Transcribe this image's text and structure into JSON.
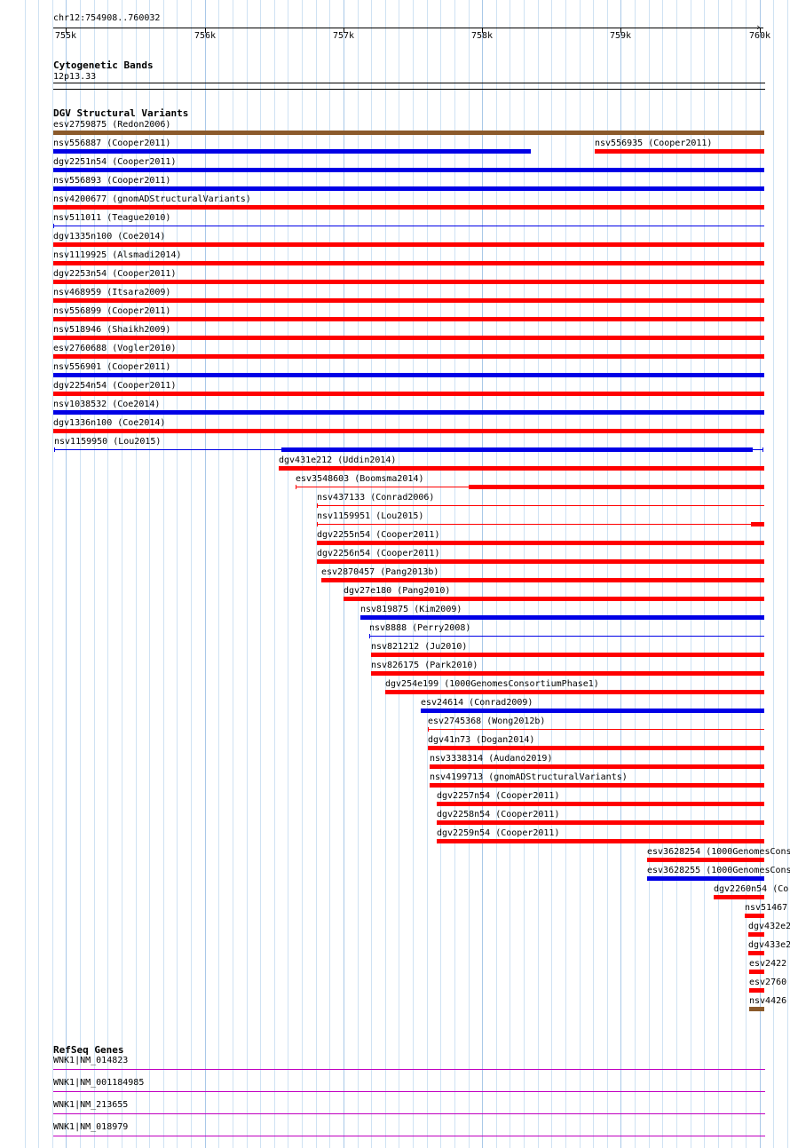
{
  "location": "chr12:754908..760032",
  "ruler": {
    "ticks": [
      {
        "label": "755k",
        "bp": 755000
      },
      {
        "label": "756k",
        "bp": 756000
      },
      {
        "label": "757k",
        "bp": 757000
      },
      {
        "label": "758k",
        "bp": 758000
      },
      {
        "label": "759k",
        "bp": 759000
      },
      {
        "label": "760k",
        "bp": 760000
      }
    ]
  },
  "cytoband": {
    "title": "Cytogenetic Bands",
    "band": "12p13.33"
  },
  "dgv": {
    "title": "DGV Structural Variants",
    "colors": {
      "brown": "#8b5a2b",
      "red": "#ff0000",
      "blue": "#0000e6"
    },
    "features": [
      {
        "label": "esv2759875 (Redon2006)",
        "start": 754908,
        "end": 760032,
        "color": "brown",
        "style": "bar",
        "row": 0
      },
      {
        "label": "nsv556887 (Cooper2011)",
        "start": 754908,
        "end": 758349,
        "color": "blue",
        "style": "bar",
        "row": 1
      },
      {
        "label": "nsv556935 (Cooper2011)",
        "start": 758813,
        "end": 760032,
        "color": "red",
        "style": "bar",
        "row": 1
      },
      {
        "label": "dgv2251n54 (Cooper2011)",
        "start": 754908,
        "end": 760032,
        "color": "blue",
        "style": "bar",
        "row": 2
      },
      {
        "label": "nsv556893 (Cooper2011)",
        "start": 754908,
        "end": 760032,
        "color": "blue",
        "style": "bar",
        "row": 3
      },
      {
        "label": "nsv4200677 (gnomADStructuralVariants)",
        "start": 754908,
        "end": 760032,
        "color": "red",
        "style": "bar",
        "row": 4
      },
      {
        "label": "nsv511011 (Teague2010)",
        "start": 754908,
        "end": 760032,
        "color": "blue",
        "style": "thin",
        "row": 5
      },
      {
        "label": "dgv1335n100 (Coe2014)",
        "start": 754908,
        "end": 760032,
        "color": "red",
        "style": "bar",
        "row": 6
      },
      {
        "label": "nsv1119925 (Alsmadi2014)",
        "start": 754908,
        "end": 760032,
        "color": "red",
        "style": "bar",
        "row": 7
      },
      {
        "label": "dgv2253n54 (Cooper2011)",
        "start": 754908,
        "end": 760032,
        "color": "red",
        "style": "bar",
        "row": 8
      },
      {
        "label": "nsv468959 (Itsara2009)",
        "start": 754908,
        "end": 760032,
        "color": "red",
        "style": "bar",
        "row": 9
      },
      {
        "label": "nsv556899 (Cooper2011)",
        "start": 754908,
        "end": 760032,
        "color": "red",
        "style": "bar",
        "row": 10
      },
      {
        "label": "nsv518946 (Shaikh2009)",
        "start": 754908,
        "end": 760032,
        "color": "red",
        "style": "bar",
        "row": 11
      },
      {
        "label": "esv2760688 (Vogler2010)",
        "start": 754908,
        "end": 760032,
        "color": "red",
        "style": "bar",
        "row": 12
      },
      {
        "label": "nsv556901 (Cooper2011)",
        "start": 754908,
        "end": 760032,
        "color": "blue",
        "style": "bar",
        "row": 13
      },
      {
        "label": "dgv2254n54 (Cooper2011)",
        "start": 754908,
        "end": 760032,
        "color": "red",
        "style": "bar",
        "row": 14
      },
      {
        "label": "nsv1038532 (Coe2014)",
        "start": 754908,
        "end": 760032,
        "color": "blue",
        "style": "bar",
        "row": 15
      },
      {
        "label": "dgv1336n100 (Coe2014)",
        "start": 754908,
        "end": 760032,
        "color": "red",
        "style": "bar",
        "row": 16
      },
      {
        "label": "nsv1159950 (Lou2015)",
        "start": 754912,
        "end": 760019,
        "color": "blue",
        "style": "split",
        "innerStart": 756552,
        "innerEnd": 759950,
        "row": 17
      },
      {
        "label": "dgv431e212 (Uddin2014)",
        "start": 756536,
        "end": 760032,
        "color": "red",
        "style": "bar",
        "row": 18
      },
      {
        "label": "esv3548603 (Boomsma2014)",
        "start": 756656,
        "end": 760032,
        "color": "red",
        "style": "split",
        "innerStart": 757904,
        "innerEnd": 760032,
        "row": 19
      },
      {
        "label": "nsv437133 (Conrad2006)",
        "start": 756808,
        "end": 760032,
        "color": "red",
        "style": "thin",
        "row": 20
      },
      {
        "label": "nsv1159951 (Lou2015)",
        "start": 756808,
        "end": 760032,
        "color": "red",
        "style": "split",
        "innerStart": 759936,
        "innerEnd": 760032,
        "row": 21
      },
      {
        "label": "dgv2255n54 (Cooper2011)",
        "start": 756808,
        "end": 760032,
        "color": "red",
        "style": "bar",
        "row": 22
      },
      {
        "label": "dgv2256n54 (Cooper2011)",
        "start": 756808,
        "end": 760032,
        "color": "red",
        "style": "bar",
        "row": 23
      },
      {
        "label": "esv2870457 (Pang2013b)",
        "start": 756840,
        "end": 760032,
        "color": "red",
        "style": "bar",
        "row": 24
      },
      {
        "label": "dgv27e180 (Pang2010)",
        "start": 757000,
        "end": 760032,
        "color": "red",
        "style": "bar",
        "row": 25
      },
      {
        "label": "nsv819875 (Kim2009)",
        "start": 757120,
        "end": 760032,
        "color": "blue",
        "style": "bar",
        "row": 26
      },
      {
        "label": "nsv8888 (Perry2008)",
        "start": 757184,
        "end": 760032,
        "color": "blue",
        "style": "thin",
        "row": 27
      },
      {
        "label": "nsv821212 (Ju2010)",
        "start": 757200,
        "end": 760032,
        "color": "red",
        "style": "bar",
        "row": 28
      },
      {
        "label": "nsv826175 (Park2010)",
        "start": 757200,
        "end": 760032,
        "color": "red",
        "style": "bar",
        "row": 29
      },
      {
        "label": "dgv254e199 (1000GenomesConsortiumPhase1)",
        "start": 757304,
        "end": 760032,
        "color": "red",
        "style": "bar",
        "row": 30
      },
      {
        "label": "esv24614 (Conrad2009)",
        "start": 757560,
        "end": 760032,
        "color": "blue",
        "style": "bar",
        "row": 31
      },
      {
        "label": "esv2745368 (Wong2012b)",
        "start": 757608,
        "end": 760032,
        "color": "red",
        "style": "thin",
        "row": 32
      },
      {
        "label": "dgv41n73 (Dogan2014)",
        "start": 757608,
        "end": 760032,
        "color": "red",
        "style": "bar",
        "row": 33
      },
      {
        "label": "nsv3338314 (Audano2019)",
        "start": 757624,
        "end": 760032,
        "color": "red",
        "style": "bar",
        "row": 34
      },
      {
        "label": "nsv4199713 (gnomADStructuralVariants)",
        "start": 757624,
        "end": 760032,
        "color": "red",
        "style": "bar",
        "row": 35
      },
      {
        "label": "dgv2257n54 (Cooper2011)",
        "start": 757672,
        "end": 760032,
        "color": "red",
        "style": "bar",
        "row": 36
      },
      {
        "label": "dgv2258n54 (Cooper2011)",
        "start": 757672,
        "end": 760032,
        "color": "red",
        "style": "bar",
        "row": 37
      },
      {
        "label": "dgv2259n54 (Cooper2011)",
        "start": 757672,
        "end": 760032,
        "color": "red",
        "style": "bar",
        "row": 38
      },
      {
        "label": "esv3628254 (1000GenomesCons",
        "start": 759192,
        "end": 760032,
        "color": "red",
        "style": "bar",
        "row": 39
      },
      {
        "label": "esv3628255 (1000GenomesCons",
        "start": 759192,
        "end": 760032,
        "color": "blue",
        "style": "bar",
        "row": 40
      },
      {
        "label": "dgv2260n54 (Co",
        "start": 759672,
        "end": 760032,
        "color": "red",
        "style": "bar",
        "row": 41
      },
      {
        "label": "nsv51467",
        "start": 759896,
        "end": 760032,
        "color": "red",
        "style": "bar",
        "row": 42
      },
      {
        "label": "dgv432e2",
        "start": 759920,
        "end": 760032,
        "color": "red",
        "style": "bar",
        "row": 43
      },
      {
        "label": "dgv433e2",
        "start": 759920,
        "end": 760032,
        "color": "red",
        "style": "bar",
        "row": 44
      },
      {
        "label": "esv2422",
        "start": 759928,
        "end": 760032,
        "color": "red",
        "style": "bar",
        "row": 45
      },
      {
        "label": "esv2760",
        "start": 759928,
        "end": 760032,
        "color": "red",
        "style": "bar",
        "row": 46
      },
      {
        "label": "nsv4426",
        "start": 759928,
        "end": 760032,
        "color": "brown",
        "style": "bar",
        "row": 47
      }
    ]
  },
  "refseq": {
    "title": "RefSeq Genes",
    "color": "#c000c0",
    "genes": [
      {
        "label": "WNK1|NM_014823"
      },
      {
        "label": "WNK1|NM_001184985"
      },
      {
        "label": "WNK1|NM_213655"
      },
      {
        "label": "WNK1|NM_018979"
      }
    ]
  }
}
